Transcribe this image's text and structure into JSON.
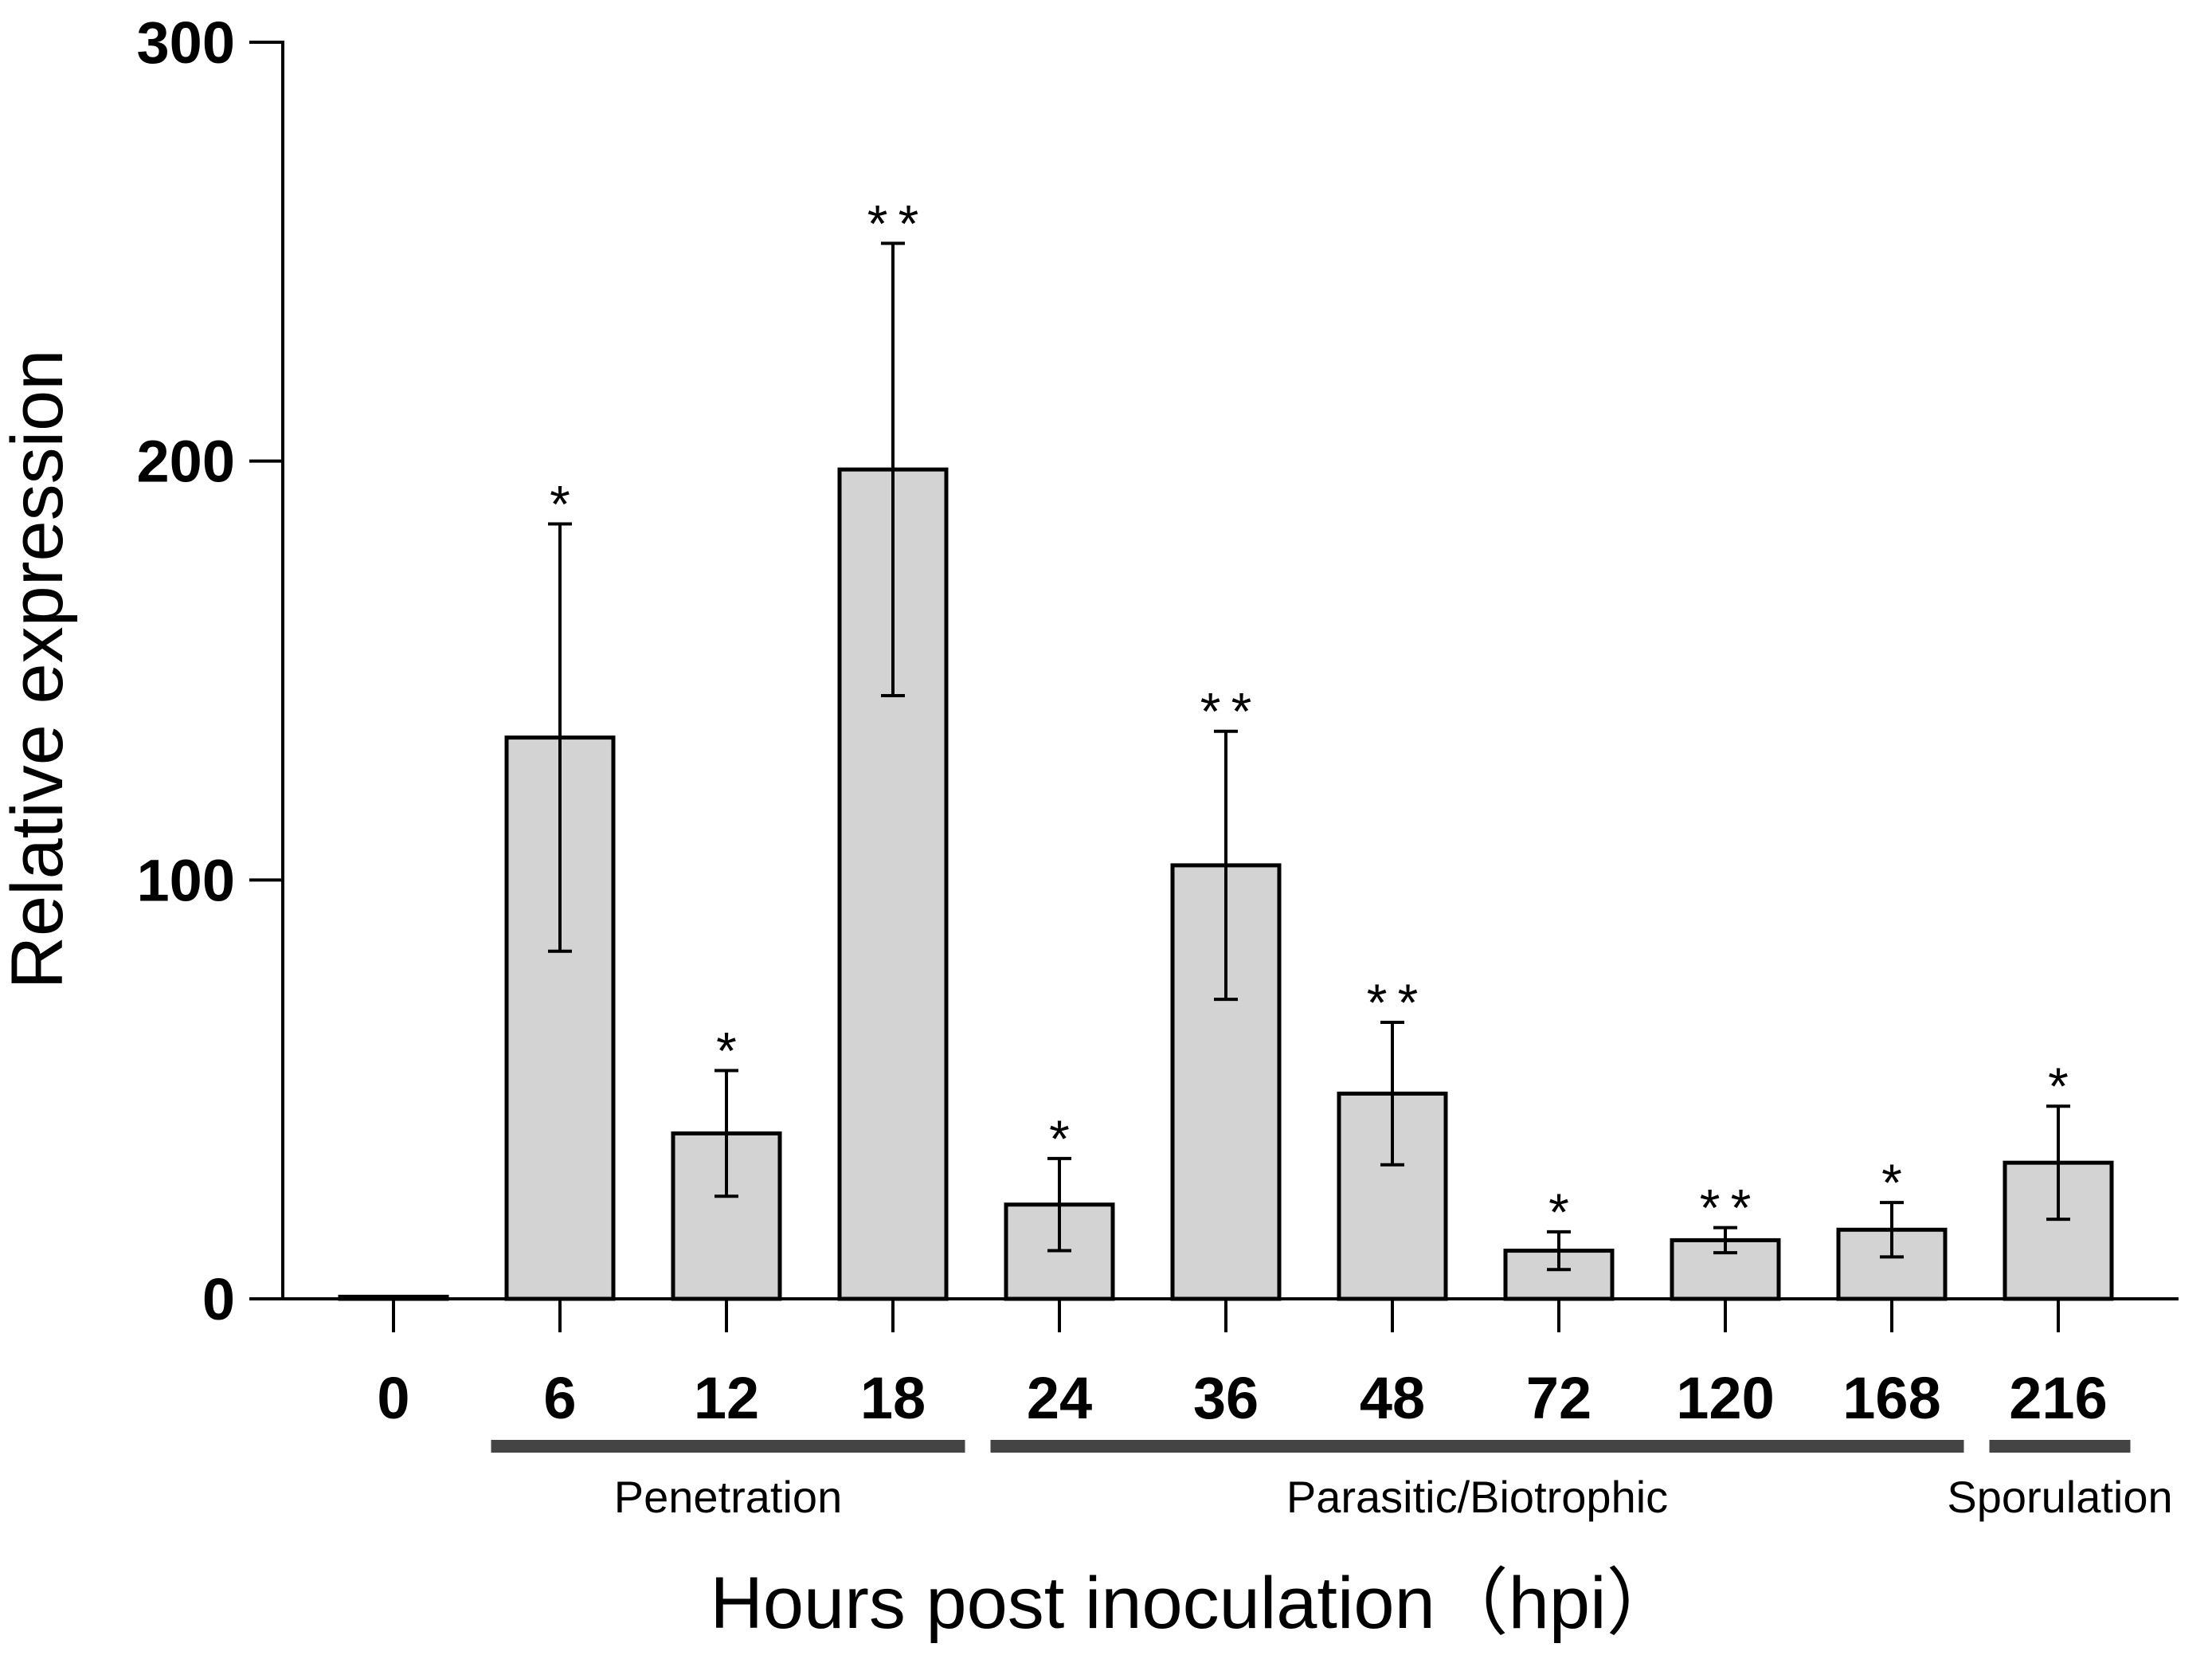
{
  "chart_data": {
    "type": "bar",
    "title": "",
    "xlabel": "Hours post inoculation（hpi）",
    "ylabel": "Relative expression",
    "ylim": [
      0,
      300
    ],
    "yticks": [
      0,
      100,
      200,
      300
    ],
    "grid": false,
    "categories": [
      "0",
      "6",
      "12",
      "18",
      "24",
      "36",
      "48",
      "72",
      "120",
      "168",
      "216"
    ],
    "values": [
      0.5,
      134,
      39.5,
      198,
      22.5,
      103.5,
      49,
      11.5,
      14,
      16.5,
      32.5
    ],
    "error": [
      0,
      51,
      15,
      54,
      11,
      32,
      17,
      4.5,
      3,
      6.5,
      13.5
    ],
    "significance": [
      "",
      "*",
      "*",
      "**",
      "*",
      "**",
      "**",
      "*",
      "**",
      "*",
      "*"
    ],
    "phases": [
      {
        "label": "Penetration",
        "from": "6",
        "to": "18"
      },
      {
        "label": "Parasitic/Biotrophic",
        "from": "24",
        "to": "168"
      },
      {
        "label": "Sporulation",
        "from": "216",
        "to": "216"
      }
    ],
    "colors": {
      "bar_fill": "#d3d3d3",
      "bar_stroke": "#000000",
      "phase_bar": "#444444",
      "axis": "#000000"
    }
  }
}
